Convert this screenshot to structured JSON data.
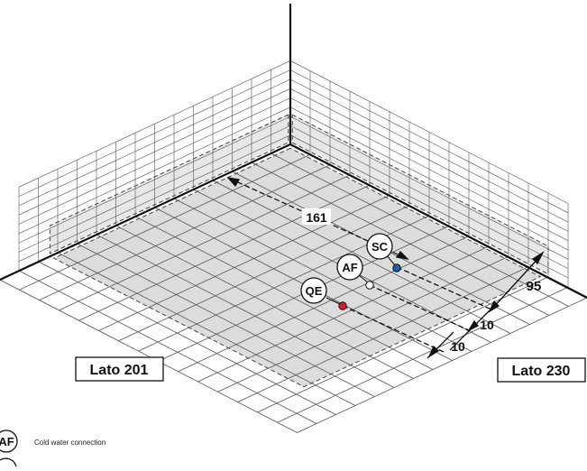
{
  "side_labels": {
    "left": "Lato 201",
    "right": "Lato 230"
  },
  "dimensions": {
    "d161": "161",
    "d95": "95",
    "d10a": "10",
    "d10b": "10"
  },
  "connections": [
    {
      "code": "SC",
      "color": "#1d5fa8"
    },
    {
      "code": "AF",
      "color": "#ffffff"
    },
    {
      "code": "QE",
      "color": "#d81e2c"
    }
  ],
  "legend": [
    {
      "code": "AF",
      "text": "Cold water connection"
    }
  ],
  "colors": {
    "wall": "#e7e7e7",
    "floor": "#dcdcdc",
    "grid": "#555555",
    "shade_edge": "#444444"
  }
}
